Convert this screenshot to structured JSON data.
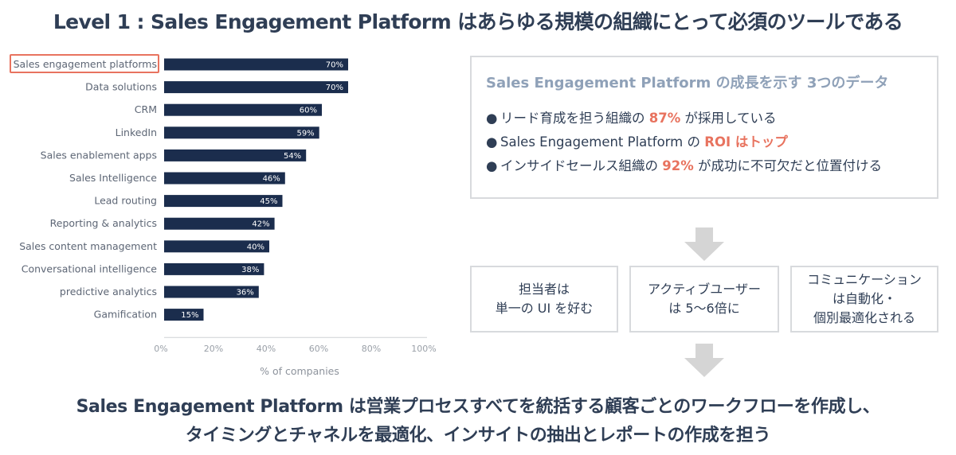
{
  "title": "Level 1 : Sales Engagement Platform はあらゆる規模の組織にとって必須のツールである",
  "chart_data": {
    "type": "bar",
    "orientation": "horizontal",
    "categories": [
      "Sales engagement platforms",
      "Data solutions",
      "CRM",
      "LinkedIn",
      "Sales enablement apps",
      "Sales Intelligence",
      "Lead routing",
      "Reporting & analytics",
      "Sales content management",
      "Conversational intelligence",
      "predictive analytics",
      "Gamification"
    ],
    "values": [
      70,
      70,
      60,
      59,
      54,
      46,
      45,
      42,
      40,
      38,
      36,
      15
    ],
    "value_labels": [
      "70%",
      "70%",
      "60%",
      "59%",
      "54%",
      "46%",
      "45%",
      "42%",
      "40%",
      "38%",
      "36%",
      "15%"
    ],
    "xlim": [
      0,
      100
    ],
    "xticks": [
      "0%",
      "20%",
      "40%",
      "60%",
      "80%",
      "100%"
    ],
    "xlabel": "% of companies",
    "highlighted_category": "Sales engagement platforms",
    "bar_color": "#1b2d4d",
    "highlight_color": "#e8735f"
  },
  "info_box": {
    "title": "Sales Engagement Platform の成長を示す 3つのデータ",
    "bullets": [
      {
        "bullet": "●",
        "pre": "リード育成を担う組織の ",
        "highlight": "87%",
        "post": " が採用している"
      },
      {
        "bullet": "●",
        "pre": "Sales Engagement Platform の ",
        "highlight": "ROI はトップ",
        "post": ""
      },
      {
        "bullet": "●",
        "pre": "インサイドセールス組織の ",
        "highlight": "92%",
        "post": " が成功に不可欠だと位置付ける"
      }
    ]
  },
  "boxes": [
    {
      "line1": "担当者は",
      "line2": "単一の UI を好む",
      "line3": ""
    },
    {
      "line1": "アクティブユーザー",
      "line2": "は 5〜6倍に",
      "line3": ""
    },
    {
      "line1": "コミュニケーション",
      "line2": "は自動化・",
      "line3": "個別最適化される"
    }
  ],
  "bottom": {
    "line1": "Sales Engagement Platform は営業プロセスすべてを統括する顧客ごとのワークフローを作成し、",
    "line2": "タイミングとチャネルを最適化、インサイトの抽出とレポートの作成を担う"
  },
  "colors": {
    "text": "#2f3e55",
    "accent": "#e8735f",
    "subtitle": "#8fa1b8",
    "border": "#d8dadd",
    "arrow": "#d5d5d5"
  }
}
